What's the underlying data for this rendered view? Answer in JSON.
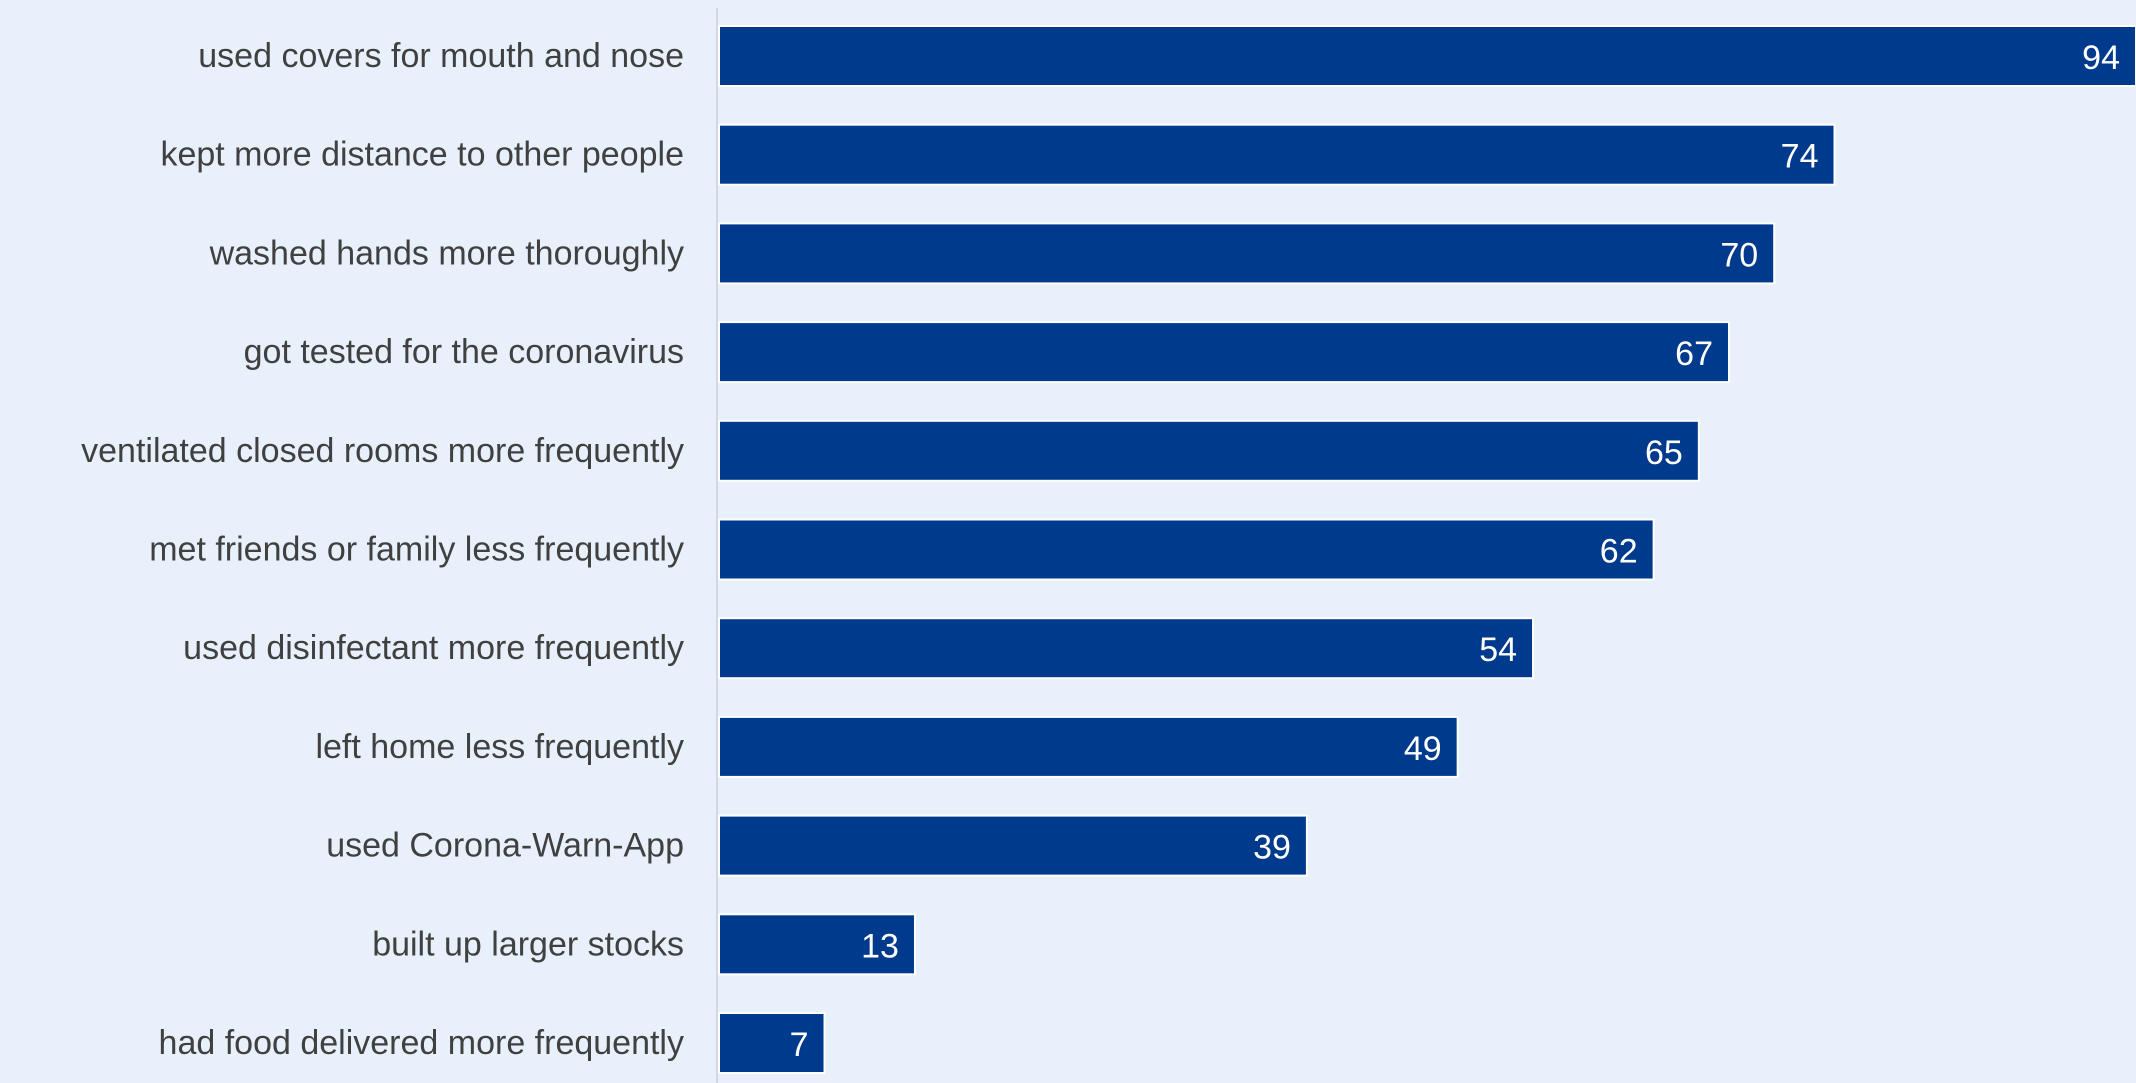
{
  "chart_data": {
    "type": "bar",
    "orientation": "horizontal",
    "categories": [
      "used covers for mouth and nose",
      "kept more distance to other people",
      "washed hands more thoroughly",
      "got tested for the coronavirus",
      "ventilated closed rooms more frequently",
      "met friends or family less frequently",
      "used disinfectant more frequently",
      "left home less frequently",
      "used Corona-Warn-App",
      "built up larger stocks",
      "had food delivered more frequently"
    ],
    "values": [
      94,
      74,
      70,
      67,
      65,
      62,
      54,
      49,
      39,
      13,
      7
    ],
    "value_labels": [
      "94",
      "74",
      "70",
      "67",
      "65",
      "62",
      "54",
      "49",
      "39",
      "13",
      "7"
    ],
    "xlim": [
      0,
      94
    ],
    "grid": false,
    "colors": {
      "background": "#e8f1fb",
      "bar": "#003a8c",
      "bar_outline": "#ffffff",
      "category_text": "#404040",
      "value_text": "#ffffff",
      "axis_line": "#cfd8e3"
    }
  }
}
